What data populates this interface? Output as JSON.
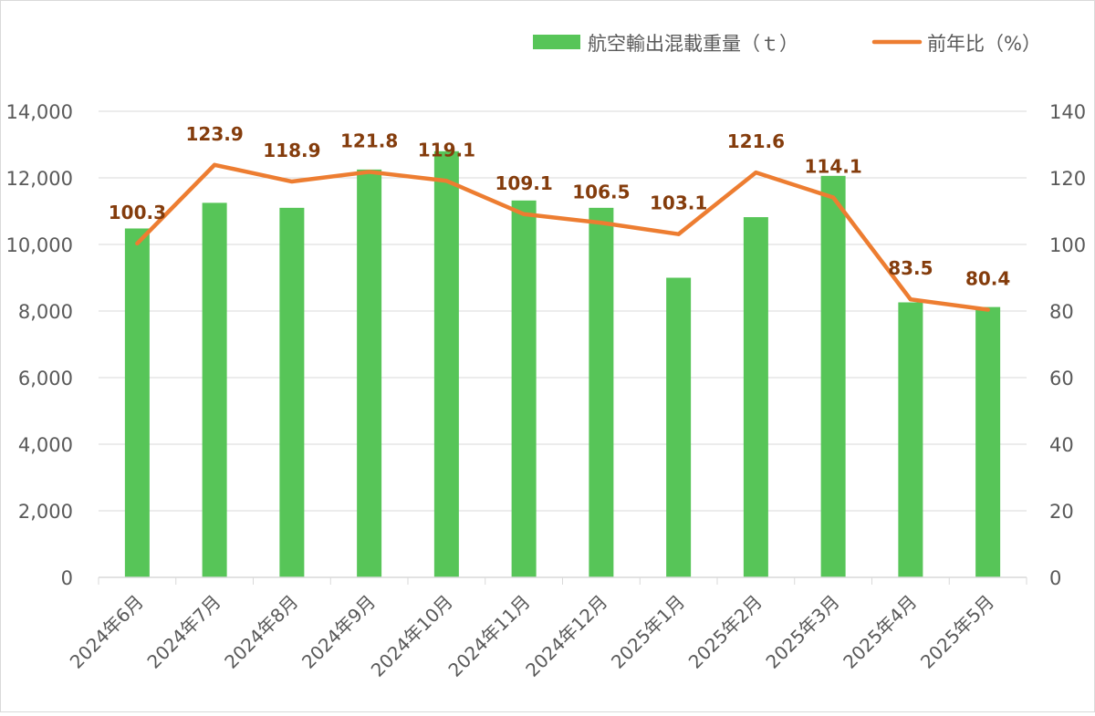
{
  "chart_data": {
    "type": "bar",
    "categories": [
      "2024年6月",
      "2024年7月",
      "2024年8月",
      "2024年9月",
      "2024年10月",
      "2024年11月",
      "2024年12月",
      "2025年1月",
      "2025年2月",
      "2025年3月",
      "2025年4月",
      "2025年5月"
    ],
    "series": [
      {
        "name": "航空輸出混載重量（ｔ）",
        "type": "bar",
        "axis": "left",
        "color": "#57c558",
        "values": [
          10480,
          11250,
          11100,
          12250,
          12800,
          11320,
          11100,
          9000,
          10820,
          12060,
          8260,
          8120
        ]
      },
      {
        "name": "前年比（%）",
        "type": "line",
        "axis": "right",
        "color": "#ed7d31",
        "values": [
          100.3,
          123.9,
          118.9,
          121.8,
          119.1,
          109.1,
          106.5,
          103.1,
          121.6,
          114.1,
          83.5,
          80.4
        ],
        "labels": [
          "100.3",
          "123.9",
          "118.9",
          "121.8",
          "119.1",
          "109.1",
          "106.5",
          "103.1",
          "121.6",
          "114.1",
          "83.5",
          "80.4"
        ],
        "label_color": "#843c0c"
      }
    ],
    "y_left": {
      "min": 0,
      "max": 14000,
      "ticks": [
        "0",
        "2,000",
        "4,000",
        "6,000",
        "8,000",
        "10,000",
        "12,000",
        "14,000"
      ]
    },
    "y_right": {
      "min": 0,
      "max": 140,
      "ticks": [
        "0",
        "20",
        "40",
        "60",
        "80",
        "100",
        "120",
        "140"
      ]
    },
    "grid": true,
    "legend_position": "top-right",
    "gridline_color": "#d9d9d9",
    "axis_text_color": "#595959"
  }
}
